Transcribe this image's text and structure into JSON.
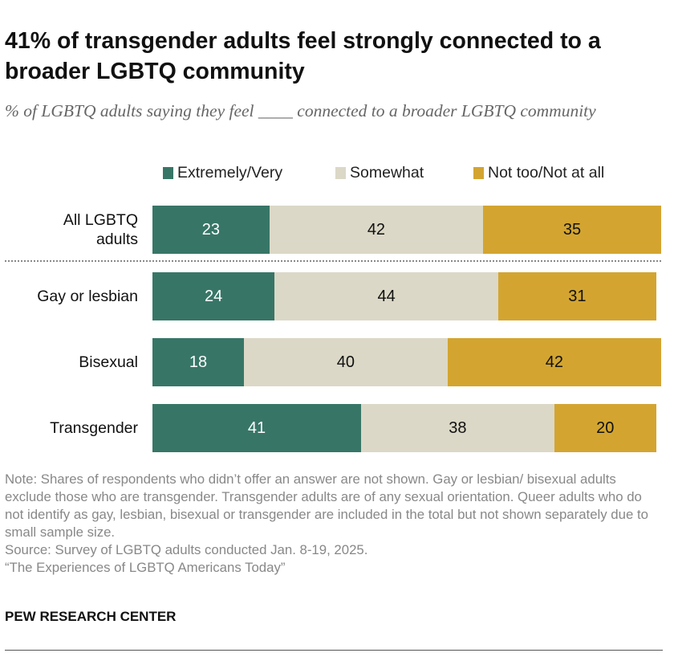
{
  "title": "41% of transgender adults feel strongly connected to a broader LGBTQ community",
  "subtitle": "% of LGBTQ adults saying they feel ____ connected to a broader LGBTQ community",
  "chart_data": {
    "type": "bar",
    "orientation": "horizontal-stacked",
    "categories": [
      "All LGBTQ adults",
      "Gay or lesbian",
      "Bisexual",
      "Transgender"
    ],
    "series": [
      {
        "name": "Extremely/Very",
        "color": "#377667",
        "values": [
          23,
          24,
          18,
          41
        ]
      },
      {
        "name": "Somewhat",
        "color": "#dbd8c7",
        "values": [
          42,
          44,
          40,
          38
        ]
      },
      {
        "name": "Not too/Not at all",
        "color": "#d3a530",
        "values": [
          35,
          31,
          42,
          20
        ]
      }
    ],
    "legend": "top",
    "xlim": [
      0,
      100
    ]
  },
  "notes": [
    "Note: Shares of respondents who didn’t offer an answer are not shown. Gay or lesbian/ bisexual adults exclude those who are transgender. Transgender adults are of any sexual orientation. Queer adults who do not identify as gay, lesbian, bisexual or transgender are included in the total but not shown separately due to small sample size.",
    "Source: Survey of LGBTQ adults conducted Jan. 8-19, 2025.",
    "“The Experiences of LGBTQ Americans Today”"
  ],
  "brand": "PEW RESEARCH CENTER"
}
